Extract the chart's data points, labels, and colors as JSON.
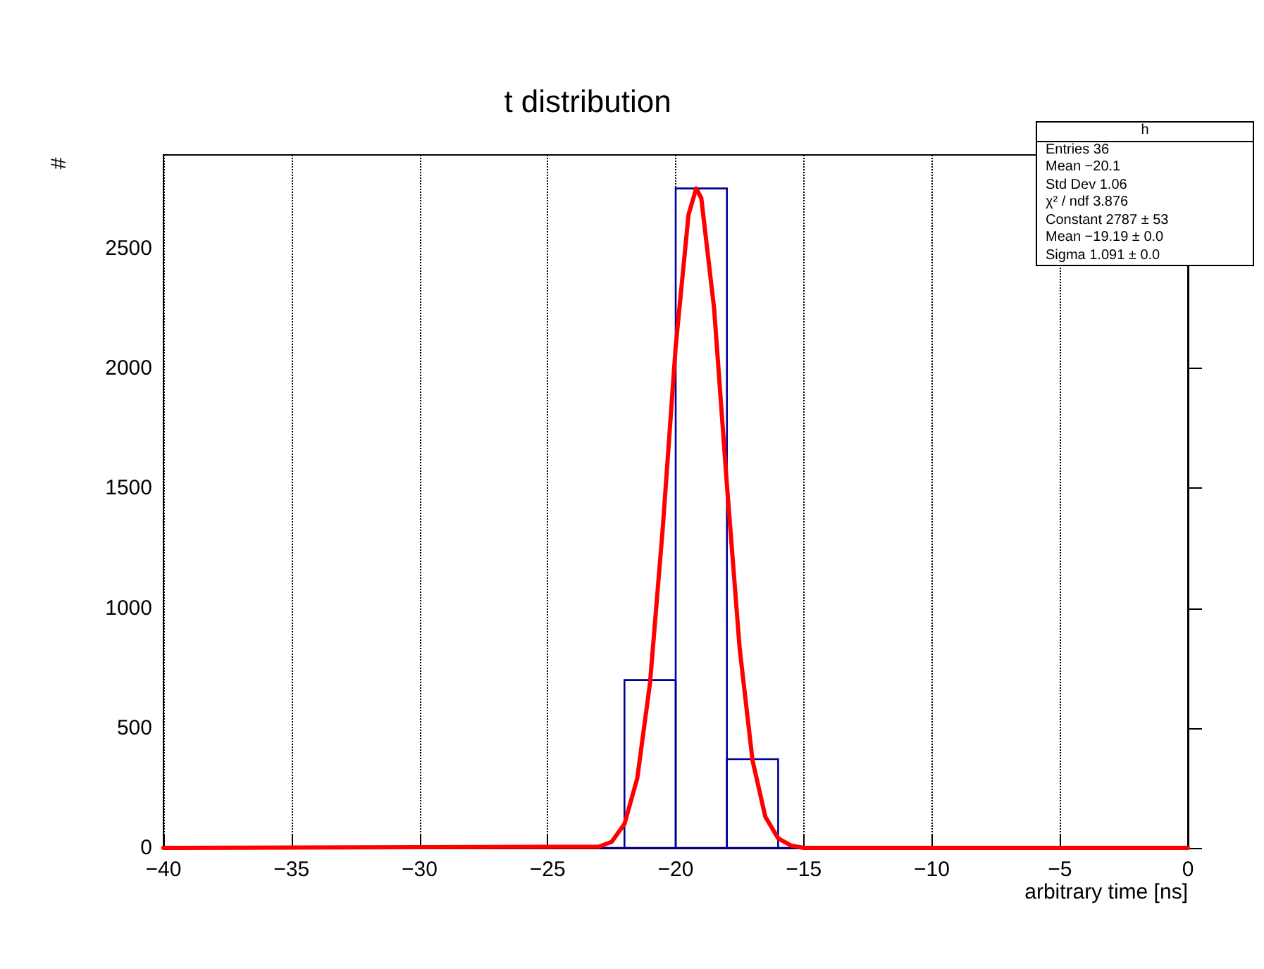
{
  "chart_data": {
    "type": "histogram",
    "title": "t distribution",
    "xlabel": "arbitrary time [ns]",
    "ylabel": "#",
    "series": [
      {
        "type": "histogram",
        "color": "#000099",
        "bins": [
          -40,
          -38,
          -36,
          -34,
          -32,
          -30,
          -28,
          -26,
          -24,
          -22,
          -20,
          -18,
          -16,
          -14,
          -12,
          -10,
          -8,
          -6,
          -4,
          -2,
          0
        ],
        "values": [
          0,
          0,
          0,
          0,
          0,
          0,
          0,
          0,
          0,
          700,
          2750,
          370,
          0,
          0,
          0,
          0,
          0,
          0,
          0,
          0
        ]
      },
      {
        "type": "line",
        "color": "#ff0000",
        "x": [
          -40,
          -23,
          -22.5,
          -22,
          -21.5,
          -21,
          -20.5,
          -20,
          -19.5,
          -19.2,
          -19,
          -18.5,
          -18,
          -17.5,
          -17,
          -16.5,
          -16,
          -15.5,
          -15,
          0
        ],
        "values": [
          0,
          5,
          25,
          100,
          290,
          690,
          1340,
          2090,
          2640,
          2750,
          2710,
          2250,
          1515,
          830,
          365,
          130,
          40,
          10,
          0,
          0
        ]
      }
    ],
    "xlim": [
      -40,
      0
    ],
    "xticks": [
      -40,
      -35,
      -30,
      -25,
      -20,
      -15,
      -10,
      -5,
      0
    ],
    "ylim": [
      0,
      2890
    ],
    "yticks": [
      0,
      500,
      1000,
      1500,
      2000,
      2500
    ],
    "grid": "x",
    "marker": "none",
    "annotations": [
      "h",
      "Entries   36",
      "Mean   −20.1",
      "Std Dev   1.06",
      "χ² / ndf   3.876",
      "Constant   2787 ± 53",
      "Mean   −19.19 ± 0.0",
      "Sigma   1.091 ± 0.0"
    ]
  }
}
